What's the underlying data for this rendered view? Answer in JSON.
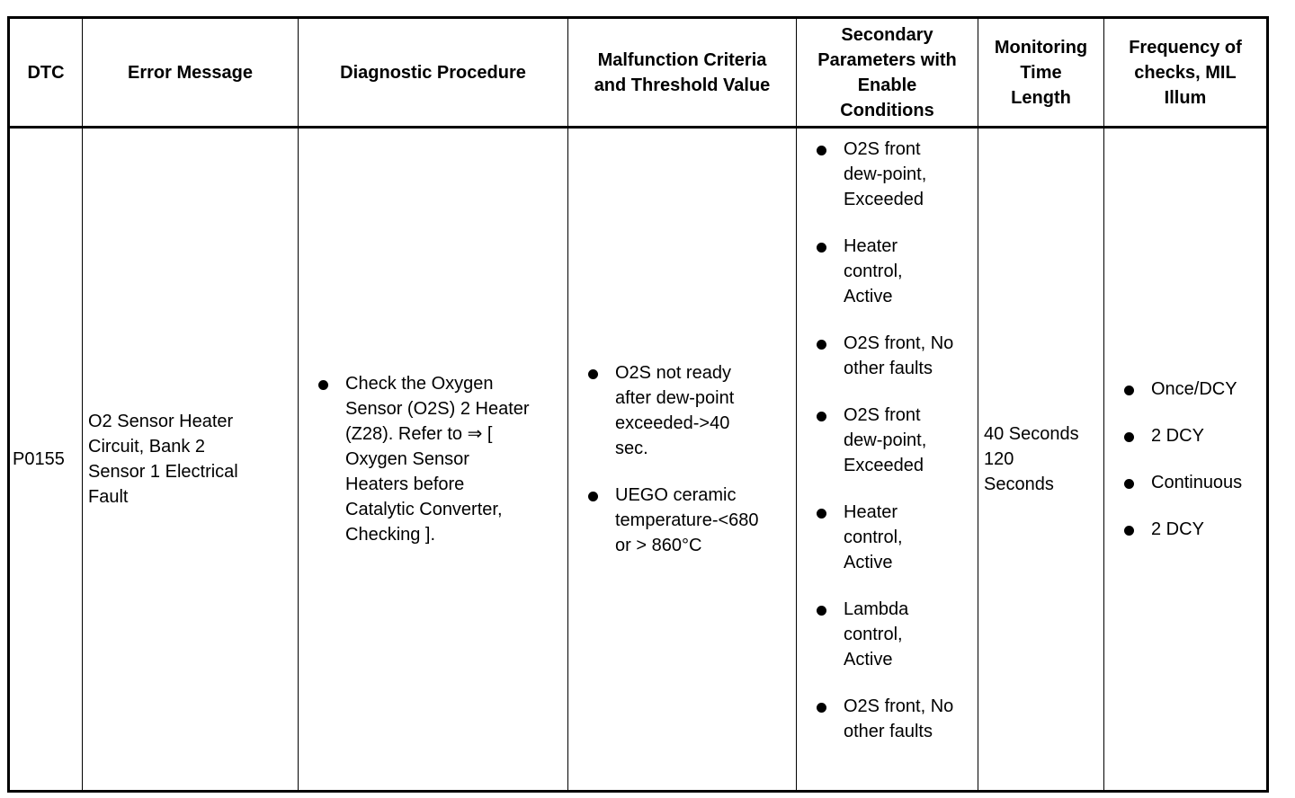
{
  "headers": {
    "dtc": "DTC",
    "error_message": "Error Message",
    "diagnostic_procedure": "Diagnostic Procedure",
    "malfunction": "Malfunction Criteria\nand Threshold Value",
    "secondary": "Secondary\nParameters with\nEnable\nConditions",
    "monitoring": "Monitoring\nTime\nLength",
    "frequency": "Frequency of\nchecks, MIL\nIllum"
  },
  "row": {
    "dtc": "P0155",
    "error_message": "O2 Sensor Heater\nCircuit, Bank 2\nSensor 1 Electrical\nFault",
    "diagnostic_procedure": [
      "Check the Oxygen\nSensor (O2S) 2 Heater\n(Z28). Refer to ⇒ [\nOxygen Sensor\nHeaters before\nCatalytic Converter,\nChecking ]."
    ],
    "malfunction": [
      "O2S not ready\nafter dew-point\nexceeded->40\nsec.",
      "UEGO ceramic\ntemperature-<680\nor > 860°C"
    ],
    "secondary": [
      "O2S front\ndew-point,\nExceeded",
      "Heater\ncontrol,\nActive",
      "O2S front, No\nother faults",
      "O2S front\ndew-point,\nExceeded",
      "Heater\ncontrol,\nActive",
      "Lambda\ncontrol,\nActive",
      "O2S front, No\nother faults"
    ],
    "monitoring": "40 Seconds\n120\nSeconds",
    "frequency": [
      "Once/DCY",
      "2 DCY",
      "Continuous",
      "2 DCY"
    ]
  }
}
